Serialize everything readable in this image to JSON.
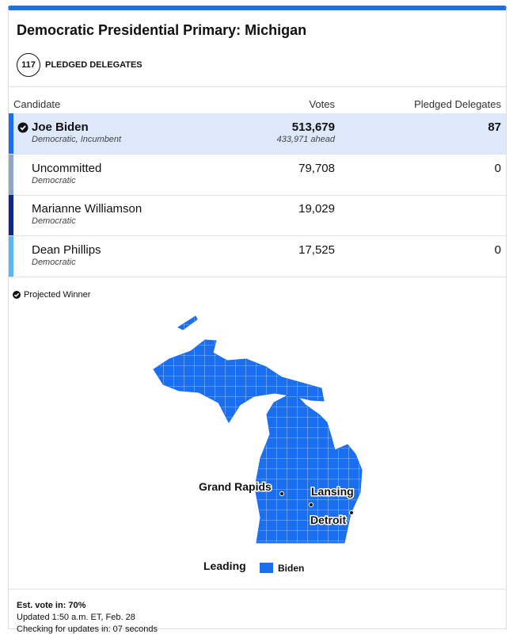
{
  "header": {
    "title": "Democratic Presidential Primary: Michigan",
    "delegates_total": "117",
    "delegates_label": "PLEDGED DELEGATES"
  },
  "table": {
    "columns": [
      "Candidate",
      "Votes",
      "Pledged Delegates"
    ],
    "rows": [
      {
        "candidate": "Joe Biden",
        "party": "Democratic, Incumbent",
        "votes": "513,679",
        "ahead": "433,971 ahead",
        "delegates": "87",
        "color": "#1a6ef0",
        "winner": true
      },
      {
        "candidate": "Uncommitted",
        "party": "Democratic",
        "votes": "79,708",
        "delegates": "0",
        "color": "#8fa6c6",
        "winner": false
      },
      {
        "candidate": "Marianne Williamson",
        "party": "Democratic",
        "votes": "19,029",
        "color": "#0c2a85",
        "winner": false
      },
      {
        "candidate": "Dean Phillips",
        "party": "Democratic",
        "votes": "17,525",
        "delegates": "0",
        "color": "#5ab6f2",
        "winner": false
      }
    ]
  },
  "note": "Projected Winner",
  "map": {
    "cities": [
      "Grand Rapids",
      "Lansing",
      "Detroit"
    ],
    "legend_title": "Leading",
    "legend_item": "Biden",
    "color": "#1a6ef0"
  },
  "footer": {
    "est_vote": "Est. vote in: 70%",
    "updated": "Updated 1:50 a.m. ET, Feb. 28",
    "checking": "Checking for updates in: 07 seconds"
  }
}
